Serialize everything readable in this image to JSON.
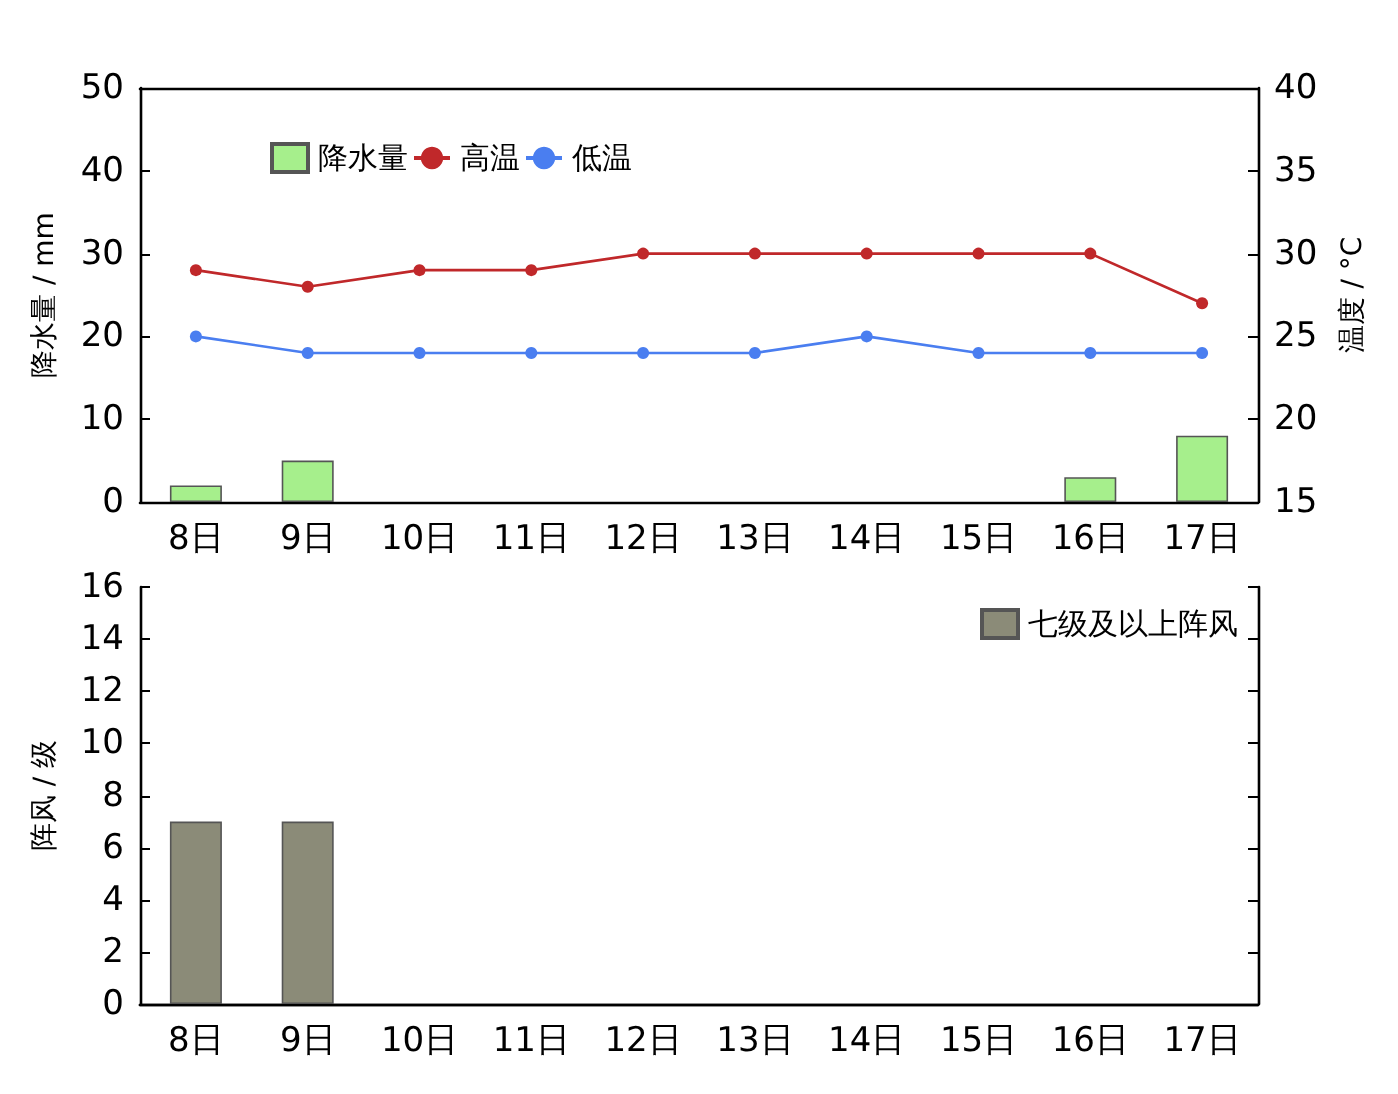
{
  "chart_data": [
    {
      "type": "bar",
      "categories": [
        "8日",
        "9日",
        "10日",
        "11日",
        "12日",
        "13日",
        "14日",
        "15日",
        "16日",
        "17日"
      ],
      "ylabel": "降水量 / mm",
      "y2label": "温度 / °C",
      "ylim": [
        0,
        50
      ],
      "yticks": [
        0,
        10,
        20,
        30,
        40,
        50
      ],
      "y2lim": [
        15,
        40
      ],
      "y2ticks": [
        15,
        20,
        25,
        30,
        35,
        40
      ],
      "legend": "top left",
      "grid": false,
      "marker": "circle",
      "series": [
        {
          "name": "降水量",
          "color": "#a6ef8c",
          "values": [
            2,
            5,
            null,
            null,
            null,
            null,
            null,
            null,
            3,
            8
          ]
        },
        {
          "name": "高温",
          "type": "line",
          "axis": "y2",
          "color": "#c0282a",
          "values": [
            29,
            28,
            29,
            29,
            30,
            30,
            30,
            30,
            30,
            27
          ]
        },
        {
          "name": "低温",
          "type": "line",
          "axis": "y2",
          "color": "#4a7ef0",
          "values": [
            25,
            24,
            24,
            24,
            24,
            24,
            25,
            24,
            24,
            24
          ]
        }
      ]
    },
    {
      "type": "bar",
      "categories": [
        "8日",
        "9日",
        "10日",
        "11日",
        "12日",
        "13日",
        "14日",
        "15日",
        "16日",
        "17日"
      ],
      "ylabel": "阵风 / 级",
      "ylim": [
        0,
        16
      ],
      "yticks": [
        0,
        2,
        4,
        6,
        8,
        10,
        12,
        14,
        16
      ],
      "legend": "top right",
      "grid": false,
      "series": [
        {
          "name": "七级及以上阵风",
          "color": "#8b8b78",
          "values": [
            7,
            7,
            null,
            null,
            null,
            null,
            null,
            null,
            null,
            null
          ]
        }
      ]
    }
  ]
}
